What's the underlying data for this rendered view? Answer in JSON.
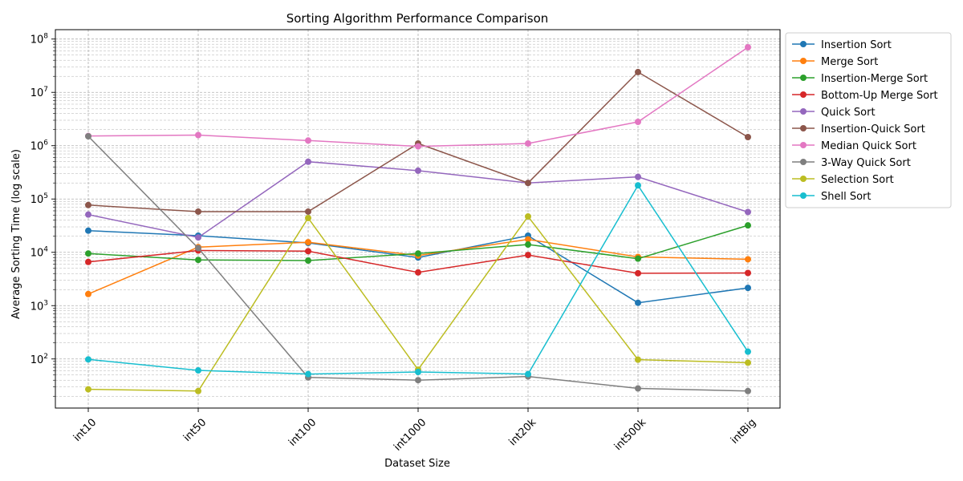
{
  "chart_data": {
    "type": "line",
    "title": "Sorting Algorithm Performance Comparison",
    "xlabel": "Dataset Size",
    "ylabel": "Average Sorting Time (log scale)",
    "yscale": "log",
    "ylim": [
      12,
      150000000
    ],
    "grid": "on (major and minor, dashed)",
    "legend_placement": "outside right, top",
    "categories": [
      "int10",
      "int50",
      "int100",
      "int1000",
      "int20k",
      "int500k",
      "intBig"
    ],
    "y_tick_labels": [
      {
        "base": "10",
        "exp": "2",
        "value": 100
      },
      {
        "base": "10",
        "exp": "3",
        "value": 1000
      },
      {
        "base": "10",
        "exp": "4",
        "value": 10000
      },
      {
        "base": "10",
        "exp": "5",
        "value": 100000
      },
      {
        "base": "10",
        "exp": "6",
        "value": 1000000
      },
      {
        "base": "10",
        "exp": "7",
        "value": 10000000
      },
      {
        "base": "10",
        "exp": "8",
        "value": 100000000
      }
    ],
    "series": [
      {
        "name": "Insertion Sort",
        "color": "#1f77b4",
        "values": [
          25500,
          20500,
          15000,
          8000,
          20500,
          1130,
          2150
        ]
      },
      {
        "name": "Merge Sort",
        "color": "#ff7f0e",
        "values": [
          1650,
          12500,
          15500,
          8700,
          17500,
          8200,
          7400
        ]
      },
      {
        "name": "Insertion-Merge Sort",
        "color": "#2ca02c",
        "values": [
          9500,
          7200,
          7000,
          9500,
          14000,
          7600,
          32000
        ]
      },
      {
        "name": "Bottom-Up Merge Sort",
        "color": "#d62728",
        "values": [
          6600,
          10800,
          10500,
          4200,
          8900,
          4050,
          4100
        ]
      },
      {
        "name": "Quick Sort",
        "color": "#9467bd",
        "values": [
          51000,
          19000,
          500000,
          340000,
          200000,
          260000,
          57000
        ]
      },
      {
        "name": "Insertion-Quick Sort",
        "color": "#8c564b",
        "values": [
          77000,
          58000,
          58000,
          1100000,
          200000,
          24000000,
          1450000
        ]
      },
      {
        "name": "Median Quick Sort",
        "color": "#e377c2",
        "values": [
          1520000,
          1580000,
          1250000,
          970000,
          1100000,
          2800000,
          70000000
        ]
      },
      {
        "name": "3-Way Quick Sort",
        "color": "#7f7f7f",
        "values": [
          1500000,
          12000,
          45,
          40,
          47,
          28,
          25
        ]
      },
      {
        "name": "Selection Sort",
        "color": "#bcbd22",
        "values": [
          27,
          25,
          44000,
          63,
          47000,
          97,
          85
        ]
      },
      {
        "name": "Shell Sort",
        "color": "#17becf",
        "values": [
          98,
          61,
          52,
          57,
          52,
          180000,
          137
        ]
      }
    ]
  }
}
